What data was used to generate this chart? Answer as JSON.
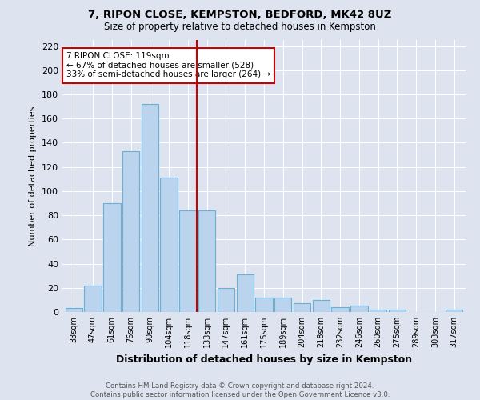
{
  "title1": "7, RIPON CLOSE, KEMPSTON, BEDFORD, MK42 8UZ",
  "title2": "Size of property relative to detached houses in Kempston",
  "xlabel": "Distribution of detached houses by size in Kempston",
  "ylabel": "Number of detached properties",
  "categories": [
    "33sqm",
    "47sqm",
    "61sqm",
    "76sqm",
    "90sqm",
    "104sqm",
    "118sqm",
    "133sqm",
    "147sqm",
    "161sqm",
    "175sqm",
    "189sqm",
    "204sqm",
    "218sqm",
    "232sqm",
    "246sqm",
    "260sqm",
    "275sqm",
    "289sqm",
    "303sqm",
    "317sqm"
  ],
  "values": [
    3,
    22,
    90,
    133,
    172,
    111,
    84,
    84,
    20,
    31,
    12,
    12,
    7,
    10,
    4,
    5,
    2,
    2,
    0,
    0,
    2
  ],
  "bar_color": "#bad4ed",
  "bar_edge_color": "#6aaed6",
  "background_color": "#dde3ef",
  "vline_color": "#cc0000",
  "vline_index": 6.45,
  "annotation_text": "7 RIPON CLOSE: 119sqm\n← 67% of detached houses are smaller (528)\n33% of semi-detached houses are larger (264) →",
  "annotation_box_color": "#ffffff",
  "annotation_box_edge": "#cc0000",
  "footer1": "Contains HM Land Registry data © Crown copyright and database right 2024.",
  "footer2": "Contains public sector information licensed under the Open Government Licence v3.0.",
  "ylim": [
    0,
    225
  ],
  "yticks": [
    0,
    20,
    40,
    60,
    80,
    100,
    120,
    140,
    160,
    180,
    200,
    220
  ]
}
